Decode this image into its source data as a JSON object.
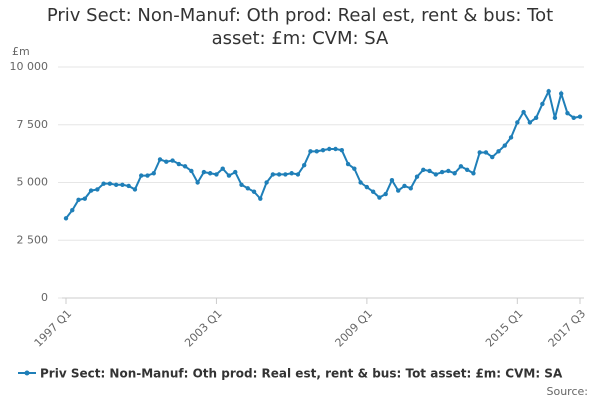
{
  "chart_data": {
    "type": "line",
    "title": "Priv Sect: Non-Manuf: Oth prod: Real est, rent & bus: Tot asset: £m: CVM: SA",
    "y_label": "£m",
    "source": "Source:",
    "categories": [
      "1997 Q1",
      null,
      null,
      null,
      null,
      null,
      null,
      null,
      null,
      null,
      null,
      null,
      null,
      null,
      null,
      null,
      null,
      null,
      null,
      null,
      null,
      null,
      null,
      null,
      "2003 Q1",
      null,
      null,
      null,
      null,
      null,
      null,
      null,
      null,
      null,
      null,
      null,
      null,
      null,
      null,
      null,
      null,
      null,
      null,
      null,
      null,
      null,
      null,
      null,
      "2009 Q1",
      null,
      null,
      null,
      null,
      null,
      null,
      null,
      null,
      null,
      null,
      null,
      null,
      null,
      null,
      null,
      null,
      null,
      null,
      null,
      null,
      null,
      null,
      null,
      "2015 Q1",
      null,
      null,
      null,
      null,
      null,
      null,
      null,
      null,
      null,
      "2017 Q3"
    ],
    "series": [
      {
        "name": "Priv Sect: Non-Manuf: Oth prod: Real est, rent & bus: Tot asset: £m: CVM: SA",
        "color": "#1f7fb8",
        "values": [
          3450,
          3800,
          4250,
          4300,
          4650,
          4700,
          4950,
          4950,
          4900,
          4900,
          4850,
          4700,
          5300,
          5300,
          5400,
          6000,
          5900,
          5950,
          5800,
          5700,
          5500,
          5000,
          5450,
          5400,
          5350,
          5600,
          5300,
          5450,
          4900,
          4750,
          4600,
          4300,
          5000,
          5350,
          5350,
          5350,
          5400,
          5350,
          5750,
          6350,
          6350,
          6400,
          6450,
          6450,
          6400,
          5800,
          5600,
          5000,
          4800,
          4600,
          4350,
          4500,
          5100,
          4650,
          4850,
          4750,
          5250,
          5550,
          5500,
          5350,
          5450,
          5500,
          5400,
          5700,
          5550,
          5400,
          6300,
          6300,
          6100,
          6350,
          6600,
          6950,
          7600,
          8050,
          7600,
          7800,
          8400,
          8950,
          7800,
          8850,
          8000,
          7800,
          7850
        ]
      }
    ],
    "ylim": [
      0,
      10000
    ],
    "yticks": [
      0,
      {
        "value": 2500,
        "label": "2 500"
      },
      {
        "value": 5000,
        "label": "5 000"
      },
      {
        "value": 7500,
        "label": "7 500"
      },
      {
        "value": 10000,
        "label": "10 000"
      }
    ],
    "grid": true
  }
}
